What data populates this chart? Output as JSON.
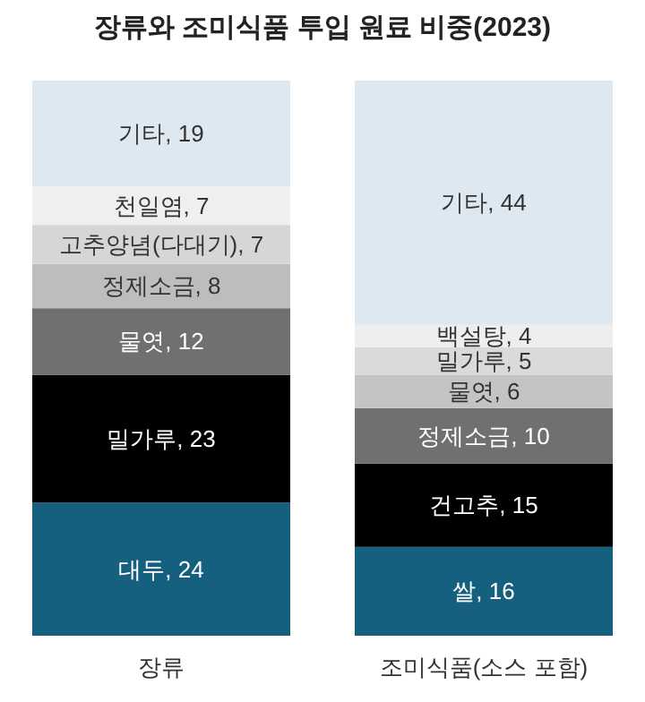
{
  "chart_data": {
    "type": "bar",
    "stacked": true,
    "title": "장류와 조미식품 투입 원료 비중(2023)",
    "categories": [
      "장류",
      "조미식품(소스 포함)"
    ],
    "ylim": [
      0,
      100
    ],
    "tick_labels": "x",
    "series": [
      {
        "values": [
          24,
          16
        ],
        "colors": [
          "#16607f",
          "#16607f"
        ],
        "value_labels": [
          "대두, 24",
          "쌀, 16"
        ]
      },
      {
        "values": [
          23,
          15
        ],
        "colors": [
          "#000000",
          "#000000"
        ],
        "value_labels": [
          "밀가루, 23",
          "건고추, 15"
        ]
      },
      {
        "values": [
          12,
          10
        ],
        "colors": [
          "#707070",
          "#707070"
        ],
        "value_labels": [
          "물엿, 12",
          "정제소금, 10"
        ]
      },
      {
        "values": [
          8,
          6
        ],
        "colors": [
          "#bdbdbd",
          "#c4c4c4"
        ],
        "value_labels": [
          "정제소금, 8",
          "물엿, 6"
        ]
      },
      {
        "values": [
          7,
          5
        ],
        "colors": [
          "#d6d6d6",
          "#dadada"
        ],
        "value_labels": [
          "고추양념(다대기), 7",
          "밀가루, 5"
        ]
      },
      {
        "values": [
          7,
          4
        ],
        "colors": [
          "#efefef",
          "#eeeeee"
        ],
        "value_labels": [
          "천일염, 7",
          "백설탕, 4"
        ]
      },
      {
        "values": [
          19,
          44
        ],
        "colors": [
          "#dde8f0",
          "#dde8f0"
        ],
        "value_labels": [
          "기타, 19",
          "기타, 44"
        ]
      }
    ]
  }
}
